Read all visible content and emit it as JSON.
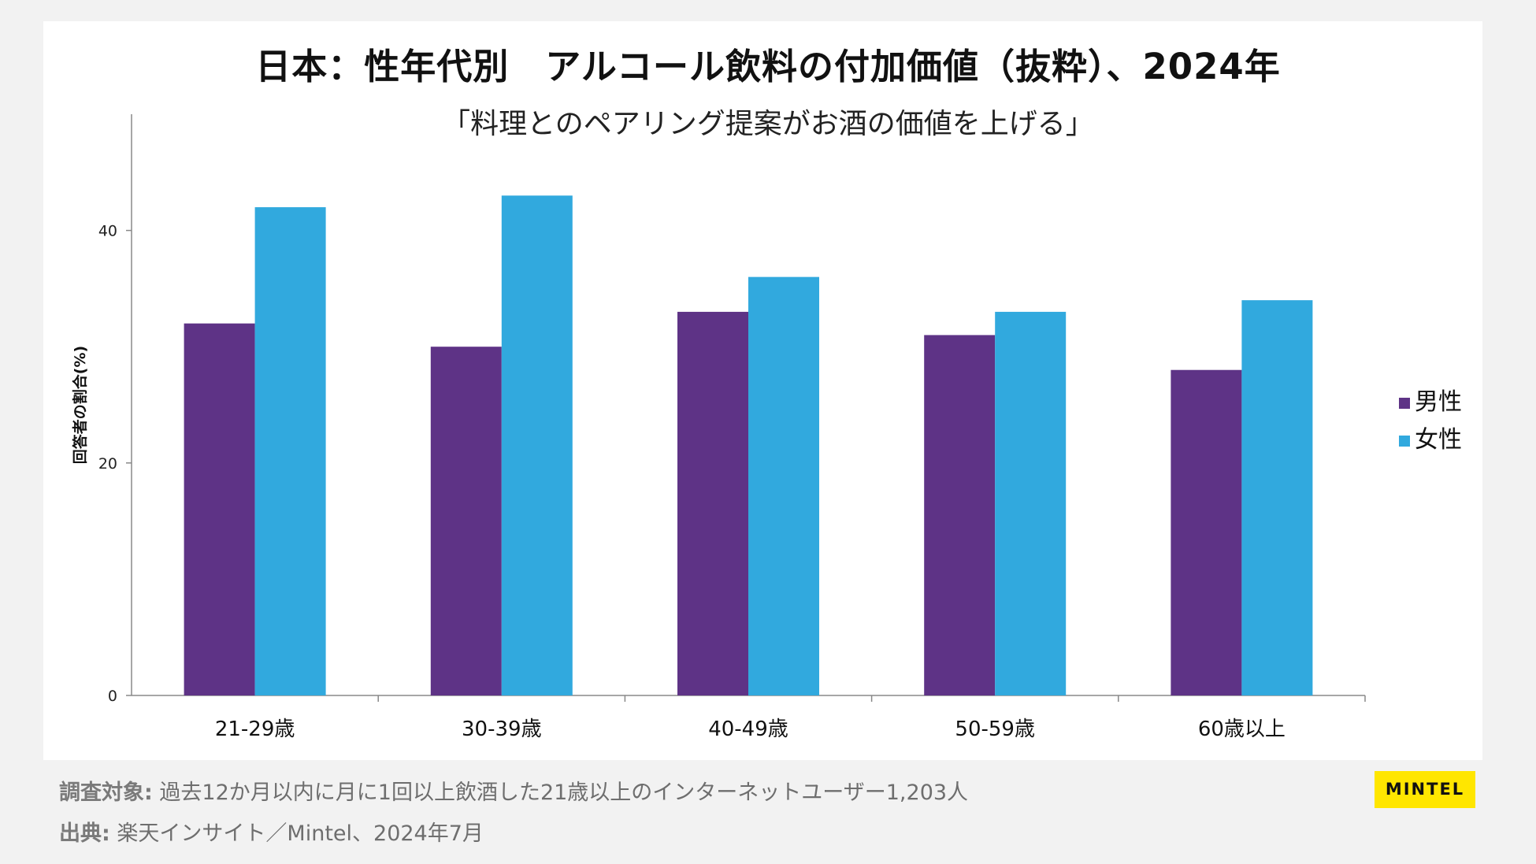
{
  "chart_data": {
    "type": "bar",
    "title": "日本：性年代別　アルコール飲料の付加価値（抜粋）、2024年",
    "subtitle": "「料理とのペアリング提案がお酒の価値を上げる」",
    "xlabel": "",
    "ylabel": "回答者の割合(%)",
    "ylim": [
      0,
      50
    ],
    "yticks": [
      0,
      20,
      40
    ],
    "categories": [
      "21-29歳",
      "30-39歳",
      "40-49歳",
      "50-59歳",
      "60歳以上"
    ],
    "series": [
      {
        "name": "男性",
        "color": "#5e3386",
        "values": [
          32,
          30,
          33,
          31,
          28
        ]
      },
      {
        "name": "女性",
        "color": "#31a9de",
        "values": [
          42,
          43,
          36,
          33,
          34
        ]
      }
    ],
    "legend_position": "right"
  },
  "footer": {
    "survey_label": "調査対象:",
    "survey_text": "過去12か月以内に月に1回以上飲酒した21歳以上のインターネットユーザー1,203人",
    "source_label": "出典:",
    "source_text": "楽天インサイト／Mintel、2024年7月"
  },
  "logo": {
    "text": "MINTEL"
  }
}
